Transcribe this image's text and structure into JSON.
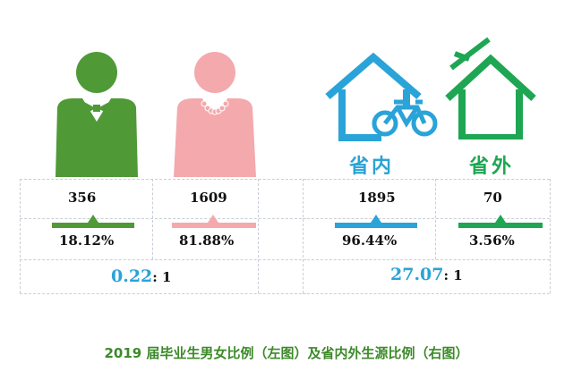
{
  "colors": {
    "male": "#4f9a36",
    "female": "#f4a9ad",
    "in_province": "#2aa3d8",
    "out_province": "#1ea653",
    "caption": "#3d8a2a"
  },
  "icons": {
    "male": "man-figure-icon",
    "female": "woman-figure-icon",
    "in_province": "house-with-bicycle-icon",
    "out_province": "house-with-airplane-icon"
  },
  "labels": {
    "in_province": "省内",
    "out_province": "省外"
  },
  "chart_data": [
    {
      "type": "table",
      "subject": "gender",
      "categories": [
        "男",
        "女"
      ],
      "counts": [
        356,
        1609
      ],
      "percents": [
        18.12,
        81.88
      ],
      "ratio": "0.22: 1"
    },
    {
      "type": "table",
      "subject": "origin",
      "categories": [
        "省内",
        "省外"
      ],
      "counts": [
        1895,
        70
      ],
      "percents": [
        96.44,
        3.56
      ],
      "ratio": "27.07: 1"
    }
  ],
  "display": {
    "male_count": "356",
    "female_count": "1609",
    "in_count": "1895",
    "out_count": "70",
    "male_pct": "18.12%",
    "female_pct": "81.88%",
    "in_pct": "96.44%",
    "out_pct": "3.56%",
    "gender_ratio_num": "0.22",
    "gender_ratio_rest": ": 1",
    "origin_ratio_num": "27.07",
    "origin_ratio_rest": ": 1"
  },
  "caption": "2019 届毕业生男女比例（左图）及省内外生源比例（右图）"
}
